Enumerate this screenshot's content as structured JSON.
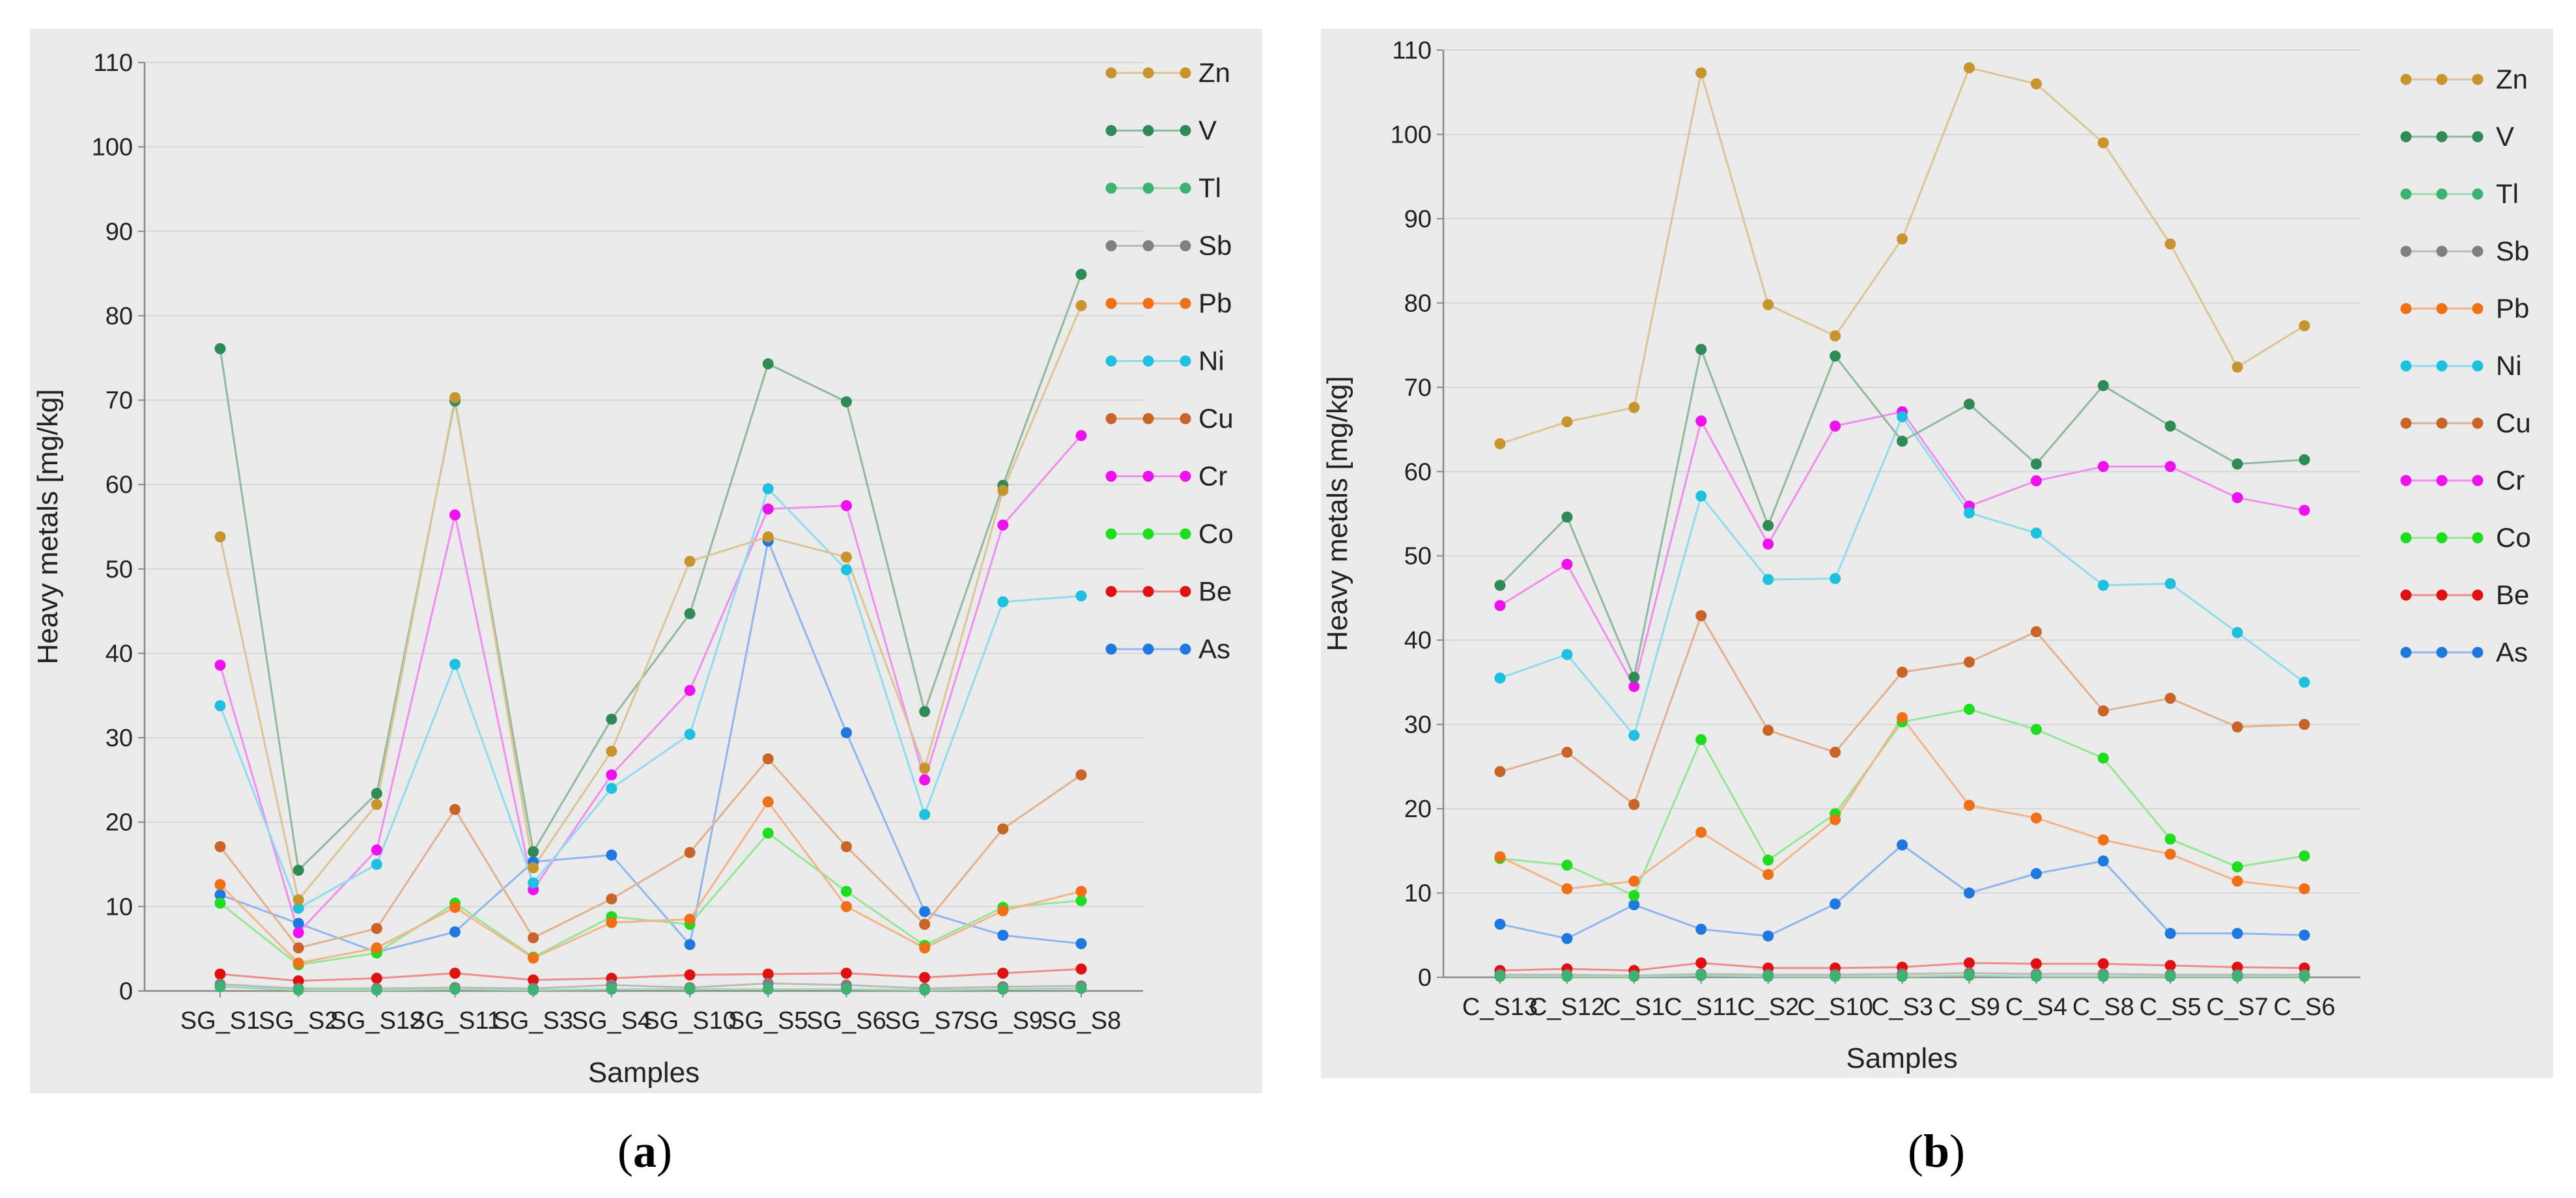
{
  "chart_data": [
    {
      "type": "line",
      "panel_label": "a",
      "xlabel": "Samples",
      "ylabel": "Heavy metals [mg/kg]",
      "ylim": [
        0,
        110
      ],
      "yticks": [
        0,
        10,
        20,
        30,
        40,
        50,
        60,
        70,
        80,
        90,
        100,
        110
      ],
      "grid": true,
      "legend_position": "right",
      "categories": [
        "SG_S1",
        "SG_S2",
        "SG_S12",
        "SG_S11",
        "SG_S3",
        "SG_S4",
        "SG_S10",
        "SG_S5",
        "SG_S6",
        "SG_S7",
        "SG_S9",
        "SG_S8"
      ],
      "series": [
        {
          "name": "Zn",
          "color": "#c8942e",
          "line": "#dcc594",
          "values": [
            53.8,
            10.8,
            22.1,
            70.3,
            14.6,
            28.4,
            50.9,
            53.8,
            51.4,
            26.4,
            59.3,
            81.2
          ]
        },
        {
          "name": "V",
          "color": "#2e8b57",
          "line": "#8fb9a0",
          "values": [
            76.1,
            14.3,
            23.4,
            69.9,
            16.5,
            32.2,
            44.7,
            74.3,
            69.8,
            33.1,
            59.9,
            84.9
          ]
        },
        {
          "name": "Tl",
          "color": "#3cb371",
          "line": "#9fd9b3",
          "values": [
            0.5,
            0.1,
            0.1,
            0.2,
            0.1,
            0.2,
            0.2,
            0.2,
            0.2,
            0.1,
            0.2,
            0.3
          ]
        },
        {
          "name": "Sb",
          "color": "#808080",
          "line": "#bbbbbb",
          "values": [
            0.8,
            0.3,
            0.3,
            0.4,
            0.3,
            0.7,
            0.4,
            0.9,
            0.7,
            0.3,
            0.5,
            0.6
          ]
        },
        {
          "name": "Pb",
          "color": "#f07018",
          "line": "#f4b48a",
          "values": [
            12.6,
            3.3,
            5.1,
            9.9,
            3.9,
            8.1,
            8.5,
            22.4,
            10.0,
            5.1,
            9.5,
            11.8
          ]
        },
        {
          "name": "Ni",
          "color": "#1ec0e0",
          "line": "#8fdcee",
          "values": [
            33.8,
            9.8,
            15.0,
            38.7,
            12.8,
            24.0,
            30.4,
            59.5,
            49.9,
            20.9,
            46.1,
            46.8
          ]
        },
        {
          "name": "Cu",
          "color": "#c86428",
          "line": "#e2b190",
          "values": [
            17.1,
            5.1,
            7.4,
            21.5,
            6.3,
            10.9,
            16.4,
            27.5,
            17.1,
            7.9,
            19.2,
            25.6
          ]
        },
        {
          "name": "Cr",
          "color": "#ee10ee",
          "line": "#f28ef0",
          "values": [
            38.6,
            6.9,
            16.7,
            56.4,
            12.0,
            25.6,
            35.6,
            57.1,
            57.5,
            25.0,
            55.2,
            65.8
          ]
        },
        {
          "name": "Co",
          "color": "#1edc1e",
          "line": "#95e695",
          "values": [
            10.4,
            3.1,
            4.5,
            10.4,
            4.0,
            8.8,
            7.9,
            18.7,
            11.8,
            5.4,
            9.9,
            10.7
          ]
        },
        {
          "name": "Be",
          "color": "#e01010",
          "line": "#ee8b8b",
          "values": [
            2.0,
            1.2,
            1.5,
            2.1,
            1.3,
            1.5,
            1.9,
            2.0,
            2.1,
            1.6,
            2.1,
            2.6
          ]
        },
        {
          "name": "As",
          "color": "#1e78e0",
          "line": "#8fb6ee",
          "values": [
            11.4,
            8.0,
            4.6,
            7.0,
            15.3,
            16.1,
            5.5,
            53.3,
            30.6,
            9.4,
            6.6,
            5.6
          ]
        }
      ]
    },
    {
      "type": "line",
      "panel_label": "b",
      "xlabel": "Samples",
      "ylabel": "Heavy metals [mg/kg]",
      "ylim": [
        0,
        110
      ],
      "yticks": [
        0,
        10,
        20,
        30,
        40,
        50,
        60,
        70,
        80,
        90,
        100,
        110
      ],
      "grid": true,
      "legend_position": "right",
      "categories": [
        "C_S13",
        "C_S12",
        "C_S1",
        "C_S11",
        "C_S2",
        "C_S10",
        "C_S3",
        "C_S9",
        "C_S4",
        "C_S8",
        "C_S5",
        "C_S7",
        "C_S6"
      ],
      "series": [
        {
          "name": "Zn",
          "color": "#c8942e",
          "line": "#dcc594",
          "values": [
            63.3,
            65.9,
            67.6,
            107.3,
            79.8,
            76.1,
            87.6,
            107.9,
            106.0,
            99.0,
            87.0,
            72.4,
            77.3
          ]
        },
        {
          "name": "V",
          "color": "#2e8b57",
          "line": "#8fb9a0",
          "values": [
            46.5,
            54.6,
            35.6,
            74.5,
            53.6,
            73.7,
            63.6,
            68.0,
            60.9,
            70.2,
            65.4,
            60.9,
            61.4
          ]
        },
        {
          "name": "Tl",
          "color": "#3cb371",
          "line": "#9fd9b3",
          "values": [
            0.1,
            0.1,
            0.1,
            0.2,
            0.1,
            0.1,
            0.1,
            0.2,
            0.1,
            0.1,
            0.1,
            0.1,
            0.1
          ]
        },
        {
          "name": "Sb",
          "color": "#808080",
          "line": "#bbbbbb",
          "values": [
            0.3,
            0.3,
            0.2,
            0.4,
            0.3,
            0.3,
            0.4,
            0.5,
            0.4,
            0.4,
            0.3,
            0.3,
            0.3
          ]
        },
        {
          "name": "Pb",
          "color": "#f07018",
          "line": "#f4b48a",
          "values": [
            14.3,
            10.5,
            11.4,
            17.2,
            12.2,
            18.7,
            30.8,
            20.4,
            18.9,
            16.3,
            14.6,
            11.4,
            10.5
          ]
        },
        {
          "name": "Ni",
          "color": "#1ec0e0",
          "line": "#8fdcee",
          "values": [
            35.5,
            38.3,
            28.7,
            57.1,
            47.2,
            47.3,
            66.5,
            55.1,
            52.7,
            46.5,
            46.7,
            40.9,
            35.0
          ]
        },
        {
          "name": "Cu",
          "color": "#c86428",
          "line": "#e2b190",
          "values": [
            24.4,
            26.7,
            20.5,
            42.9,
            29.3,
            26.7,
            36.2,
            37.4,
            41.0,
            31.6,
            33.1,
            29.7,
            30.0
          ]
        },
        {
          "name": "Cr",
          "color": "#ee10ee",
          "line": "#f28ef0",
          "values": [
            44.1,
            49.0,
            34.5,
            66.0,
            51.4,
            65.4,
            67.1,
            55.9,
            58.9,
            60.6,
            60.6,
            56.9,
            55.4
          ]
        },
        {
          "name": "Co",
          "color": "#1edc1e",
          "line": "#95e695",
          "values": [
            14.1,
            13.3,
            9.7,
            28.2,
            13.9,
            19.4,
            30.3,
            31.8,
            29.4,
            26.0,
            16.4,
            13.1,
            14.4
          ]
        },
        {
          "name": "Be",
          "color": "#e01010",
          "line": "#ee8b8b",
          "values": [
            0.8,
            1.0,
            0.8,
            1.7,
            1.1,
            1.1,
            1.2,
            1.7,
            1.6,
            1.6,
            1.4,
            1.2,
            1.1
          ]
        },
        {
          "name": "As",
          "color": "#1e78e0",
          "line": "#8fb6ee",
          "values": [
            6.3,
            4.6,
            8.6,
            5.7,
            4.9,
            8.7,
            15.7,
            10.0,
            12.3,
            13.8,
            5.2,
            5.2,
            5.0
          ]
        }
      ]
    }
  ]
}
